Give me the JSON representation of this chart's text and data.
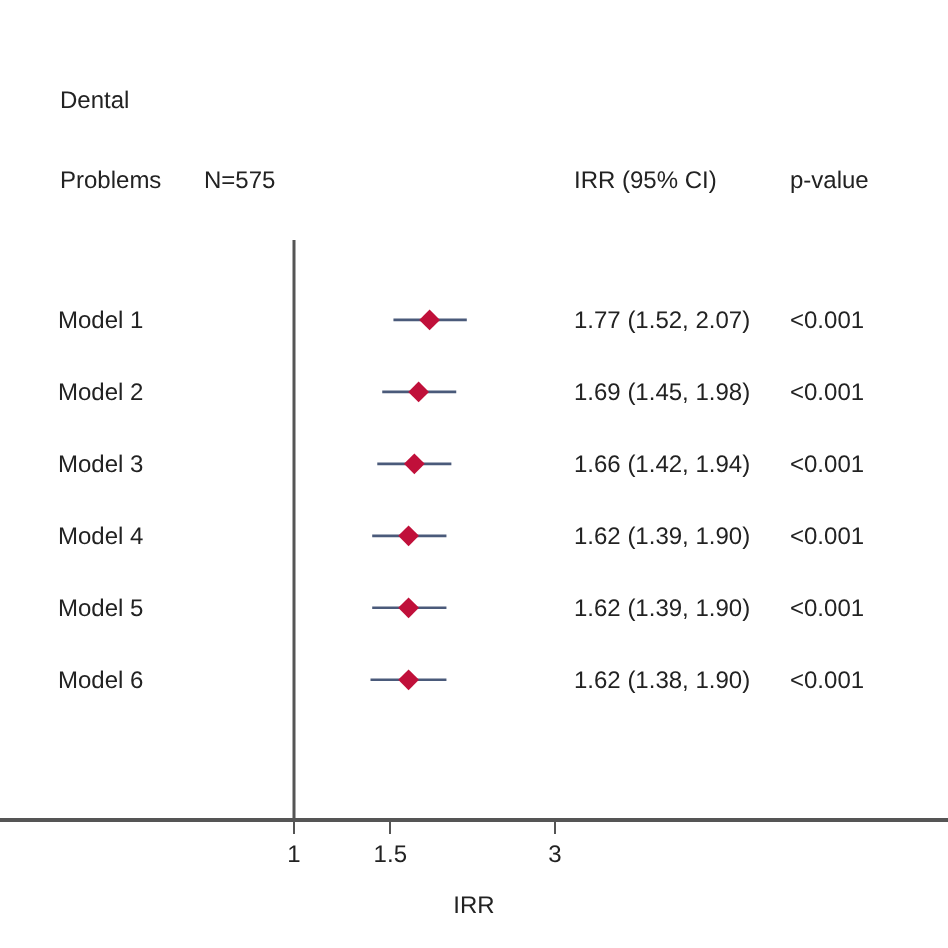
{
  "chart_data": {
    "type": "scatter",
    "orientation": "horizontal",
    "categories": [
      "Model 1",
      "Model 2",
      "Model 3",
      "Model 4",
      "Model 5",
      "Model 6"
    ],
    "values": [
      1.77,
      1.69,
      1.66,
      1.62,
      1.62,
      1.62
    ],
    "errors": [
      [
        1.52,
        2.07
      ],
      [
        1.45,
        1.98
      ],
      [
        1.42,
        1.94
      ],
      [
        1.39,
        1.9
      ],
      [
        1.39,
        1.9
      ],
      [
        1.38,
        1.9
      ]
    ],
    "color": "#c0103a",
    "marker": "diamond",
    "xlabel": "IRR",
    "log": "x",
    "xlim": [
      0.29,
      15.7
    ],
    "xticks": [
      1,
      1.5,
      3
    ],
    "ref_lines": [
      {
        "axis": "x",
        "value": 1,
        "color": "#555555"
      }
    ],
    "annotations": [
      "Dental",
      "Problems",
      "N=575",
      "IRR (95% CI)",
      "p-value",
      "1.77 (1.52, 2.07)",
      "<0.001",
      "1.69 (1.45, 1.98)",
      "<0.001",
      "1.66 (1.42, 1.94)",
      "<0.001",
      "1.62 (1.39, 1.90)",
      "<0.001",
      "1.62 (1.39, 1.90)",
      "<0.001",
      "1.62 (1.38, 1.90)",
      "<0.001"
    ]
  }
}
